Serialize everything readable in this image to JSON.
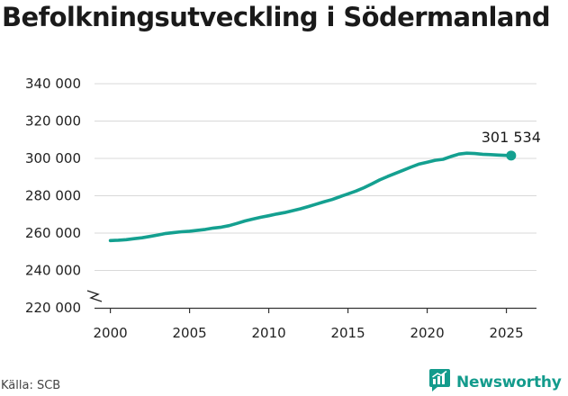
{
  "title": "Befolkningsutveckling i Södermanland",
  "source": "Källa: SCB",
  "brand": {
    "name": "Newsworthy",
    "icon": "newsworthy-logo-icon",
    "color": "#139b8c"
  },
  "colors": {
    "line": "#14a090",
    "grid": "#d9d9d9",
    "axis": "#333333"
  },
  "chart_data": {
    "type": "line",
    "title": "Befolkningsutveckling i Södermanland",
    "xlabel": "",
    "ylabel": "",
    "xlim": [
      1999,
      2026.9
    ],
    "ylim": [
      220000,
      340000
    ],
    "y_axis_break": true,
    "grid": "horizontal",
    "legend": "none",
    "x_ticks": [
      2000,
      2005,
      2010,
      2015,
      2020,
      2025
    ],
    "x_tick_labels": [
      "2000",
      "2005",
      "2010",
      "2015",
      "2020",
      "2025"
    ],
    "y_ticks": [
      220000,
      240000,
      260000,
      280000,
      300000,
      320000,
      340000
    ],
    "y_tick_labels": [
      "220 000",
      "240 000",
      "260 000",
      "280 000",
      "300 000",
      "320 000",
      "340 000"
    ],
    "series": [
      {
        "x": [
          2000,
          2000.5,
          2001,
          2001.5,
          2002,
          2002.5,
          2003,
          2003.5,
          2004,
          2004.5,
          2005,
          2005.5,
          2006,
          2006.5,
          2007,
          2007.5,
          2008,
          2008.5,
          2009,
          2009.5,
          2010,
          2010.5,
          2011,
          2011.5,
          2012,
          2012.5,
          2013,
          2013.5,
          2014,
          2014.5,
          2015,
          2015.5,
          2016,
          2016.5,
          2017,
          2017.5,
          2018,
          2018.5,
          2019,
          2019.5,
          2020,
          2020.5,
          2021,
          2021.5,
          2022,
          2022.5,
          2023,
          2023.5,
          2024,
          2024.5,
          2025,
          2025.3
        ],
        "values": [
          256000,
          256200,
          256500,
          257000,
          257500,
          258200,
          259000,
          259800,
          260300,
          260700,
          261000,
          261500,
          262000,
          262700,
          263200,
          264000,
          265200,
          266500,
          267500,
          268500,
          269300,
          270200,
          271000,
          272000,
          273000,
          274200,
          275500,
          276800,
          278000,
          279500,
          281000,
          282500,
          284300,
          286300,
          288500,
          290300,
          292000,
          293700,
          295400,
          297000,
          298000,
          299000,
          299500,
          301000,
          302300,
          302800,
          302600,
          302200,
          302000,
          301800,
          301600,
          301534
        ]
      }
    ],
    "annotations": [
      {
        "text": "301 534",
        "x": 2025.3,
        "y": 301534
      }
    ]
  }
}
